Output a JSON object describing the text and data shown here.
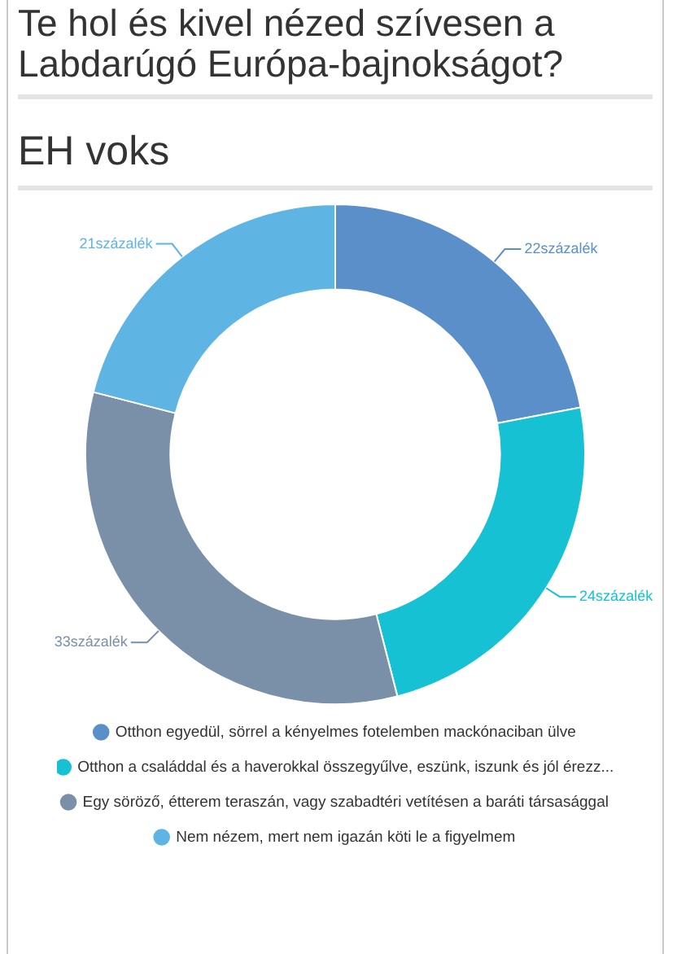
{
  "chart_data": {
    "type": "donut",
    "title": "Te hol és kivel nézed szívesen a Labdarúgó Európa-bajnokságot?",
    "subtitle": "EH voks",
    "categories": [
      "Otthon egyedül, sörrel a kényelmes fotelemben mackónaciban ülve",
      "Otthon a családdal és a haverokkal összegyűlve, eszünk, iszunk és jól érezz...",
      "Egy söröző, étterem teraszán, vagy szabadtéri vetítésen a baráti társasággal",
      "Nem nézem, mert nem igazán köti le a figyelmem"
    ],
    "values": [
      22,
      24,
      33,
      21
    ],
    "value_labels": [
      "22százalék",
      "24százalék",
      "33százalék",
      "21százalék"
    ],
    "colors": [
      "#5a8fca",
      "#17c1d4",
      "#7a8fa8",
      "#5eb5e3"
    ],
    "legend": "bottom"
  }
}
